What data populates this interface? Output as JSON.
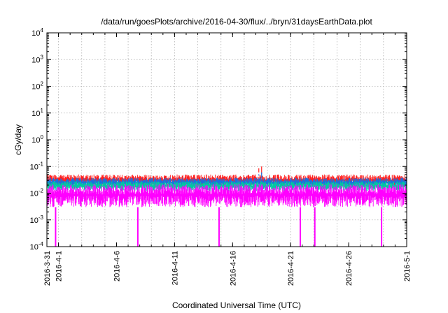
{
  "chart_data": {
    "type": "line",
    "title": "/data/run/goesPlots/archive/2016-04-30/flux/../bryn/31daysEarthData.plot",
    "xlabel": "Coordinated Universal Time (UTC)",
    "ylabel": "cGy/day",
    "yscale": "log",
    "ylim": [
      0.0001,
      10000
    ],
    "yticks": [
      {
        "value": 0.0001,
        "base": "10",
        "exp": "-4"
      },
      {
        "value": 0.001,
        "base": "10",
        "exp": "-3"
      },
      {
        "value": 0.01,
        "base": "10",
        "exp": "-2"
      },
      {
        "value": 0.1,
        "base": "10",
        "exp": "-1"
      },
      {
        "value": 1,
        "base": "10",
        "exp": "0"
      },
      {
        "value": 10,
        "base": "10",
        "exp": "1"
      },
      {
        "value": 100,
        "base": "10",
        "exp": "2"
      },
      {
        "value": 1000,
        "base": "10",
        "exp": "3"
      },
      {
        "value": 10000,
        "base": "10",
        "exp": "4"
      }
    ],
    "xlim": [
      "2016-03-31",
      "2016-05-01"
    ],
    "xticks": [
      {
        "date": "2016-03-31",
        "label": "2016-3-31"
      },
      {
        "date": "2016-04-01",
        "label": "2016-4-1"
      },
      {
        "date": "2016-04-06",
        "label": "2016-4-6"
      },
      {
        "date": "2016-04-11",
        "label": "2016-4-11"
      },
      {
        "date": "2016-04-16",
        "label": "2016-4-16"
      },
      {
        "date": "2016-04-21",
        "label": "2016-4-21"
      },
      {
        "date": "2016-04-26",
        "label": "2016-4-26"
      },
      {
        "date": "2016-05-01",
        "label": "2016-5-1"
      }
    ],
    "grid": true,
    "legend": "none",
    "series": [
      {
        "color": "#ff2020",
        "band_low": 0.018,
        "band_high": 0.05,
        "peaks": [
          {
            "date": "2016-04-18T12:00",
            "value": 0.1
          }
        ]
      },
      {
        "color": "#1a6fe0",
        "band_low": 0.016,
        "band_high": 0.038,
        "peaks": [
          {
            "date": "2016-04-18T12:00",
            "value": 0.06
          }
        ]
      },
      {
        "color": "#00c8a0",
        "band_low": 0.012,
        "band_high": 0.028,
        "peaks": []
      },
      {
        "color": "#ff00ff",
        "band_low": 0.003,
        "band_high": 0.022,
        "dropouts": [
          "2016-03-31T18:00",
          "2016-04-07T20:00",
          "2016-04-14T20:00",
          "2016-04-21T20:00",
          "2016-04-23T02:00",
          "2016-04-28T20:00"
        ],
        "dropout_value": 0.0001
      }
    ]
  }
}
